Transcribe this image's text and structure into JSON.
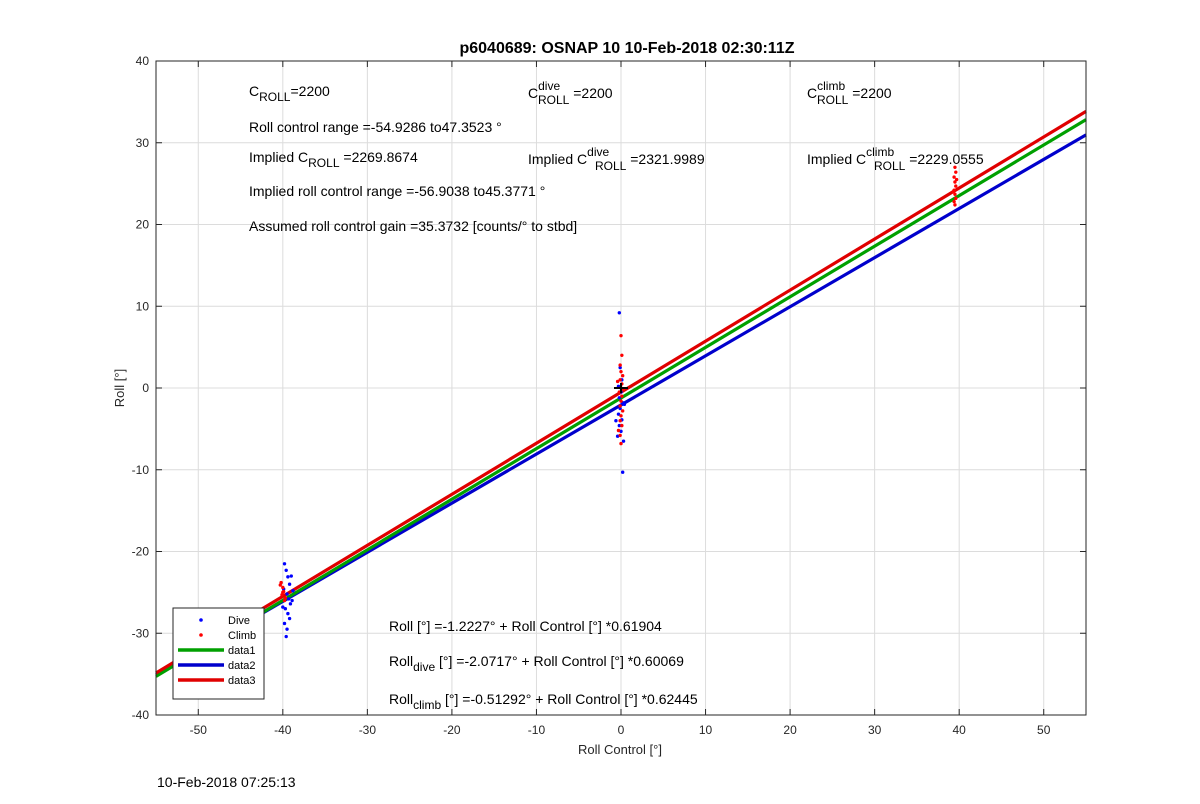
{
  "chart_data": {
    "type": "scatter",
    "title": "p6040689: OSNAP 10 10-Feb-2018 02:30:11Z",
    "xlabel": "Roll Control [°]",
    "ylabel": "Roll [°]",
    "xlim": [
      -55,
      55
    ],
    "ylim": [
      -40,
      40
    ],
    "xticks": [
      -50,
      -40,
      -30,
      -20,
      -10,
      0,
      10,
      20,
      30,
      40,
      50
    ],
    "yticks": [
      -40,
      -30,
      -20,
      -10,
      0,
      10,
      20,
      30,
      40
    ],
    "grid": true,
    "legend_position": "bottom-left",
    "timestamp": "10-Feb-2018 07:25:13",
    "series": [
      {
        "name": "Dive",
        "kind": "points",
        "color": "#0000ff",
        "points": [
          [
            -39.8,
            -21.5
          ],
          [
            -39.6,
            -22.3
          ],
          [
            -39.4,
            -23.1
          ],
          [
            -39.2,
            -24.0
          ],
          [
            -39.9,
            -24.6
          ],
          [
            -39.5,
            -25.2
          ],
          [
            -39.3,
            -25.8
          ],
          [
            -39.1,
            -26.4
          ],
          [
            -39.7,
            -27.0
          ],
          [
            -39.4,
            -27.6
          ],
          [
            -39.2,
            -28.2
          ],
          [
            -39.8,
            -28.8
          ],
          [
            -39.5,
            -29.5
          ],
          [
            -39.6,
            -30.4
          ],
          [
            -38.9,
            -26.0
          ],
          [
            -38.8,
            -24.8
          ],
          [
            -40.0,
            -26.8
          ],
          [
            -39.0,
            -23.0
          ],
          [
            -0.2,
            9.2
          ],
          [
            -0.1,
            2.5
          ],
          [
            0.1,
            1.0
          ],
          [
            -0.3,
            0.2
          ],
          [
            0.0,
            -0.5
          ],
          [
            -0.2,
            -1.2
          ],
          [
            0.2,
            -1.8
          ],
          [
            -0.1,
            -2.5
          ],
          [
            -0.3,
            -3.2
          ],
          [
            0.1,
            -3.9
          ],
          [
            -0.2,
            -4.6
          ],
          [
            0.0,
            -5.3
          ],
          [
            -0.4,
            -5.9
          ],
          [
            0.3,
            -6.5
          ],
          [
            0.2,
            -10.3
          ],
          [
            -0.6,
            -4.0
          ],
          [
            0.4,
            -2.0
          ]
        ]
      },
      {
        "name": "Climb",
        "kind": "points",
        "color": "#ff0000",
        "points": [
          [
            -40.2,
            -23.8
          ],
          [
            -40.0,
            -24.4
          ],
          [
            -39.9,
            -24.9
          ],
          [
            -40.1,
            -25.3
          ],
          [
            -39.7,
            -25.7
          ],
          [
            -40.3,
            -24.1
          ],
          [
            -39.8,
            -26.0
          ],
          [
            -40.0,
            -25.0
          ],
          [
            0.0,
            6.4
          ],
          [
            0.1,
            4.0
          ],
          [
            -0.1,
            2.8
          ],
          [
            0.0,
            2.0
          ],
          [
            0.2,
            1.5
          ],
          [
            -0.1,
            1.0
          ],
          [
            0.1,
            0.5
          ],
          [
            0.0,
            0.0
          ],
          [
            -0.2,
            -0.5
          ],
          [
            0.1,
            -1.0
          ],
          [
            0.0,
            -1.6
          ],
          [
            -0.1,
            -2.2
          ],
          [
            0.2,
            -2.8
          ],
          [
            0.0,
            -3.4
          ],
          [
            -0.1,
            -4.0
          ],
          [
            0.1,
            -4.6
          ],
          [
            -0.3,
            -5.2
          ],
          [
            -0.1,
            -5.8
          ],
          [
            0.0,
            -6.8
          ],
          [
            0.3,
            -0.2
          ],
          [
            -0.4,
            0.8
          ],
          [
            39.5,
            27.0
          ],
          [
            39.6,
            26.4
          ],
          [
            39.4,
            25.8
          ],
          [
            39.5,
            25.2
          ],
          [
            39.6,
            24.7
          ],
          [
            39.4,
            24.2
          ],
          [
            39.5,
            23.7
          ],
          [
            39.6,
            23.2
          ],
          [
            39.4,
            22.8
          ],
          [
            39.5,
            22.4
          ],
          [
            39.7,
            25.5
          ],
          [
            39.3,
            24.0
          ]
        ]
      },
      {
        "name": "data1",
        "kind": "line",
        "color": "#00a000",
        "intercept": -1.2227,
        "slope": 0.61904
      },
      {
        "name": "data2",
        "kind": "line",
        "color": "#0000cc",
        "intercept": -2.0717,
        "slope": 0.60069
      },
      {
        "name": "data3",
        "kind": "line",
        "color": "#e00000",
        "intercept": -0.51292,
        "slope": 0.62445
      }
    ],
    "annotations": {
      "c_roll": {
        "main": "C",
        "sub": "ROLL",
        "value": "=2200"
      },
      "c_roll_dive": {
        "main": "C",
        "sup": "dive",
        "sub": "ROLL",
        "value": " =2200"
      },
      "c_roll_climb": {
        "main": "C",
        "sup": "climb",
        "sub": "ROLL",
        "value": " =2200"
      },
      "roll_control_range": "Roll control range =-54.9286 to47.3523 °",
      "implied_c_roll": {
        "prefix": "Implied C",
        "sub": "ROLL",
        "value": " =2269.8674"
      },
      "implied_c_roll_dive": {
        "prefix": "Implied C",
        "sup": "dive",
        "sub": "ROLL",
        "value": " =2321.9989"
      },
      "implied_c_roll_climb": {
        "prefix": "Implied C",
        "sup": "climb",
        "sub": "ROLL",
        "value": " =2229.0555"
      },
      "implied_range": "Implied roll control range =-56.9038 to45.3771 °",
      "gain": "Assumed roll control gain =35.3732 [counts/° to stbd]",
      "fit_all": "Roll [°] =-1.2227° + Roll Control [°] *0.61904",
      "fit_dive": {
        "main": "Roll",
        "sub": "dive",
        "rest": " [°] =-2.0717° + Roll Control [°] *0.60069"
      },
      "fit_climb": {
        "main": "Roll",
        "sub": "climb",
        "rest": " [°] =-0.51292° + Roll Control [°] *0.62445"
      }
    }
  }
}
